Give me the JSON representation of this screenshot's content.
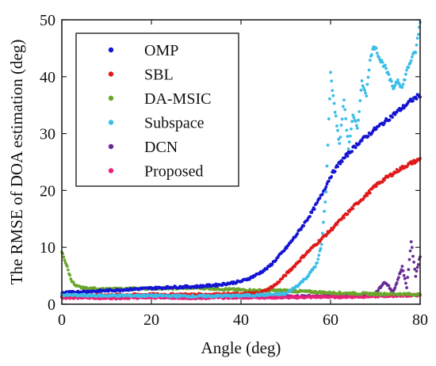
{
  "chart_data": {
    "type": "scatter",
    "xlabel": "Angle (deg)",
    "ylabel": "The RMSE of DOA estimation (deg)",
    "xlim": [
      0,
      80
    ],
    "ylim": [
      0,
      50
    ],
    "xticks": [
      0,
      20,
      40,
      60,
      80
    ],
    "yticks": [
      0,
      10,
      20,
      30,
      40,
      50
    ],
    "grid": false,
    "legend_position": "top-left",
    "series": [
      {
        "name": "OMP",
        "color": "#1414d2",
        "x": [
          0,
          5,
          10,
          15,
          20,
          25,
          30,
          35,
          40,
          42,
          44,
          46,
          48,
          50,
          52,
          54,
          56,
          58,
          60,
          62,
          64,
          66,
          68,
          70,
          72,
          74,
          76,
          78,
          80
        ],
        "y": [
          2.0,
          2.2,
          2.4,
          2.6,
          2.8,
          3.0,
          3.1,
          3.4,
          4.0,
          4.6,
          5.4,
          6.4,
          8.0,
          9.8,
          11.8,
          14.0,
          16.4,
          19.2,
          22.5,
          24.8,
          26.5,
          28.2,
          29.5,
          30.8,
          32.0,
          33.3,
          34.5,
          35.8,
          36.8
        ]
      },
      {
        "name": "SBL",
        "color": "#e01a1a",
        "x": [
          0,
          10,
          20,
          30,
          40,
          44,
          46,
          48,
          50,
          52,
          54,
          56,
          58,
          60,
          62,
          64,
          66,
          68,
          70,
          72,
          74,
          76,
          78,
          80
        ],
        "y": [
          1.6,
          1.6,
          1.7,
          1.7,
          1.8,
          2.0,
          2.6,
          3.6,
          5.2,
          6.8,
          8.5,
          10.0,
          11.5,
          13.0,
          14.6,
          16.2,
          17.8,
          19.2,
          20.8,
          22.0,
          23.0,
          24.0,
          24.8,
          25.5
        ]
      },
      {
        "name": "DA-MSIC",
        "color": "#6aa62a",
        "x": [
          0,
          1,
          2,
          3,
          5,
          10,
          15,
          20,
          25,
          30,
          35,
          40,
          45,
          50,
          55,
          60,
          65,
          70,
          75,
          80
        ],
        "y": [
          9.2,
          7.0,
          4.5,
          3.2,
          2.8,
          2.6,
          2.7,
          2.8,
          2.8,
          2.9,
          2.7,
          2.5,
          2.4,
          2.4,
          2.2,
          2.0,
          1.9,
          1.8,
          1.8,
          1.7
        ]
      },
      {
        "name": "Subspace",
        "color": "#3cbde8",
        "x": [
          0,
          10,
          20,
          30,
          40,
          50,
          53,
          55,
          57,
          58,
          59,
          60,
          61,
          62,
          63,
          64,
          65,
          66,
          67,
          68,
          69,
          70,
          71,
          72,
          73,
          74,
          75,
          76,
          77,
          78,
          79,
          80
        ],
        "y": [
          1.6,
          1.5,
          1.5,
          1.4,
          1.5,
          1.8,
          3.5,
          5.0,
          7.2,
          10.5,
          20.0,
          40.5,
          34.0,
          28.0,
          36.0,
          27.5,
          33.0,
          31.0,
          39.0,
          37.0,
          44.0,
          45.5,
          43.0,
          42.0,
          40.0,
          38.0,
          39.5,
          38.0,
          41.0,
          43.0,
          44.5,
          49.5
        ]
      },
      {
        "name": "DCN",
        "color": "#6a2a96",
        "x": [
          0,
          10,
          20,
          30,
          40,
          50,
          55,
          60,
          65,
          70,
          72,
          74,
          76,
          77,
          78,
          79,
          80
        ],
        "y": [
          1.3,
          1.3,
          1.3,
          1.2,
          1.3,
          1.3,
          1.4,
          1.4,
          1.5,
          1.8,
          4.0,
          2.2,
          6.5,
          3.0,
          11.0,
          5.0,
          8.5
        ]
      },
      {
        "name": "Proposed",
        "color": "#e8207a",
        "x": [
          0,
          10,
          20,
          30,
          40,
          50,
          60,
          65,
          70,
          75,
          80
        ],
        "y": [
          1.2,
          1.1,
          1.2,
          1.1,
          1.2,
          1.2,
          1.3,
          1.3,
          1.4,
          1.5,
          1.6
        ]
      }
    ]
  }
}
